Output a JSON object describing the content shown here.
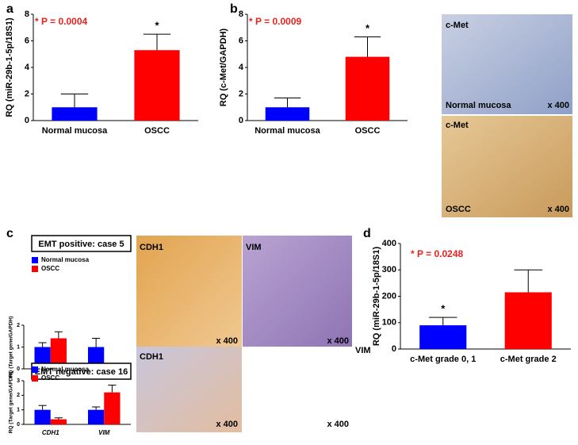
{
  "panels": [
    "a",
    "b",
    "c",
    "d"
  ],
  "images": [
    {
      "labels": [
        "c-Met",
        "Normal mucosa",
        "x 400"
      ]
    },
    {
      "labels": [
        "c-Met",
        "OSCC",
        "x 400"
      ]
    },
    {
      "labels": [
        "CDH1",
        "x 400"
      ]
    },
    {
      "labels": [
        "VIM",
        "x 400"
      ]
    },
    {
      "labels": [
        "CDH1",
        "x 400"
      ]
    },
    {
      "labels": [
        "VIM",
        "x 400"
      ]
    }
  ],
  "chart_data": [
    {
      "type": "bar",
      "ylabel": "RQ (miR-29b-1-5p/18S1)",
      "annotation": "* P = 0.0004",
      "categories": [
        "Normal mucosa",
        "OSCC"
      ],
      "values": [
        1.0,
        5.3
      ],
      "errors": [
        1.0,
        1.2
      ],
      "colors": [
        "#0000ff",
        "#ff0000"
      ],
      "marker": "*",
      "marker_index": 1,
      "ylim": [
        0,
        8
      ],
      "yticks": [
        0,
        2,
        4,
        6,
        8
      ]
    },
    {
      "type": "bar",
      "ylabel": "RQ (c-Met/GAPDH)",
      "annotation": "* P = 0.0009",
      "categories": [
        "Normal mucosa",
        "OSCC"
      ],
      "values": [
        1.0,
        4.8
      ],
      "errors": [
        0.7,
        1.5
      ],
      "colors": [
        "#0000ff",
        "#ff0000"
      ],
      "marker": "*",
      "marker_index": 1,
      "ylim": [
        0,
        8
      ],
      "yticks": [
        0,
        2,
        4,
        6,
        8
      ]
    },
    {
      "type": "grouped-bar",
      "title": "EMT positive:  case 5",
      "ylabel": "RQ (Target gene/GAPDH)",
      "categories": [
        "CDH1",
        "VIM"
      ],
      "series": [
        {
          "name": "Normal mucosa",
          "color": "#0000ff",
          "values": [
            1.0,
            1.0
          ],
          "errors": [
            0.2,
            0.4
          ]
        },
        {
          "name": "OSCC",
          "color": "#ff0000",
          "values": [
            1.4,
            0.1
          ],
          "errors": [
            0.3,
            0.05
          ]
        }
      ],
      "ylim": [
        0,
        2
      ],
      "yticks": [
        0,
        1,
        2
      ]
    },
    {
      "type": "grouped-bar",
      "title": "EMT negative: case 16",
      "ylabel": "RQ (Target gene/GAPDH)",
      "categories": [
        "CDH1",
        "VIM"
      ],
      "series": [
        {
          "name": "Normal mucosa",
          "color": "#0000ff",
          "values": [
            1.0,
            1.0
          ],
          "errors": [
            0.3,
            0.2
          ]
        },
        {
          "name": "OSCC",
          "color": "#ff0000",
          "values": [
            0.35,
            2.2
          ],
          "errors": [
            0.1,
            0.5
          ]
        }
      ],
      "ylim": [
        0,
        3
      ],
      "yticks": [
        0,
        1,
        2,
        3
      ]
    },
    {
      "type": "bar",
      "ylabel": "RQ (miR-29b-1-5p/18S1)",
      "annotation": "* P = 0.0248",
      "categories": [
        "c-Met grade 0, 1",
        "c-Met grade 2"
      ],
      "values": [
        90,
        215
      ],
      "errors": [
        30,
        85
      ],
      "colors": [
        "#0000ff",
        "#ff0000"
      ],
      "marker": "*",
      "marker_index": 0,
      "ylim": [
        0,
        400
      ],
      "yticks": [
        0,
        100,
        200,
        300,
        400
      ]
    }
  ]
}
